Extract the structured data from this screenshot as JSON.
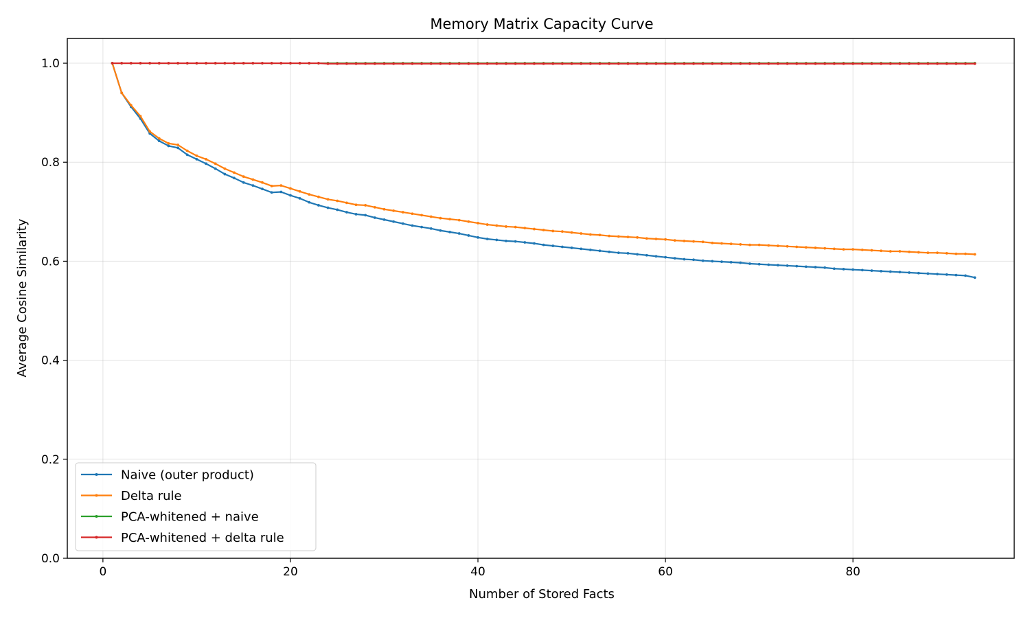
{
  "chart_data": {
    "type": "line",
    "title": "Memory Matrix Capacity Curve",
    "xlabel": "Number of Stored Facts",
    "ylabel": "Average Cosine Similarity",
    "xlim": [
      -3.8,
      97.2
    ],
    "ylim": [
      0,
      1.05
    ],
    "xticks": [
      0,
      20,
      40,
      60,
      80
    ],
    "yticks": [
      0.0,
      0.2,
      0.4,
      0.6,
      0.8,
      1.0
    ],
    "xtick_labels": [
      "0",
      "20",
      "40",
      "60",
      "80"
    ],
    "ytick_labels": [
      "0.0",
      "0.2",
      "0.4",
      "0.6",
      "0.8",
      "1.0"
    ],
    "grid": true,
    "legend_position": "lower-left",
    "series": [
      {
        "name": "Naive (outer product)",
        "color": "#1f77b4",
        "x_start": 1,
        "x_step": 1,
        "values": [
          1.0,
          0.94,
          0.912,
          0.888,
          0.858,
          0.843,
          0.833,
          0.829,
          0.815,
          0.806,
          0.797,
          0.787,
          0.776,
          0.768,
          0.759,
          0.753,
          0.746,
          0.739,
          0.74,
          0.733,
          0.727,
          0.719,
          0.713,
          0.708,
          0.704,
          0.699,
          0.695,
          0.693,
          0.688,
          0.684,
          0.68,
          0.676,
          0.672,
          0.669,
          0.666,
          0.662,
          0.659,
          0.656,
          0.652,
          0.648,
          0.645,
          0.643,
          0.641,
          0.64,
          0.638,
          0.636,
          0.633,
          0.631,
          0.629,
          0.627,
          0.625,
          0.623,
          0.621,
          0.619,
          0.617,
          0.616,
          0.614,
          0.612,
          0.61,
          0.608,
          0.606,
          0.604,
          0.603,
          0.601,
          0.6,
          0.599,
          0.598,
          0.597,
          0.595,
          0.594,
          0.593,
          0.592,
          0.591,
          0.59,
          0.589,
          0.588,
          0.587,
          0.585,
          0.584,
          0.583,
          0.582,
          0.581,
          0.58,
          0.579,
          0.578,
          0.577,
          0.576,
          0.575,
          0.574,
          0.573,
          0.572,
          0.571,
          0.567
        ]
      },
      {
        "name": "Delta rule",
        "color": "#ff7f0e",
        "x_start": 1,
        "x_step": 1,
        "values": [
          1.0,
          0.94,
          0.915,
          0.893,
          0.862,
          0.848,
          0.838,
          0.835,
          0.823,
          0.813,
          0.806,
          0.797,
          0.787,
          0.779,
          0.771,
          0.765,
          0.759,
          0.752,
          0.753,
          0.747,
          0.741,
          0.735,
          0.73,
          0.725,
          0.722,
          0.718,
          0.714,
          0.713,
          0.709,
          0.705,
          0.702,
          0.699,
          0.696,
          0.693,
          0.69,
          0.687,
          0.685,
          0.683,
          0.68,
          0.677,
          0.674,
          0.672,
          0.67,
          0.669,
          0.667,
          0.665,
          0.663,
          0.661,
          0.66,
          0.658,
          0.656,
          0.654,
          0.653,
          0.651,
          0.65,
          0.649,
          0.648,
          0.646,
          0.645,
          0.644,
          0.642,
          0.641,
          0.64,
          0.639,
          0.637,
          0.636,
          0.635,
          0.634,
          0.633,
          0.633,
          0.632,
          0.631,
          0.63,
          0.629,
          0.628,
          0.627,
          0.626,
          0.625,
          0.624,
          0.624,
          0.623,
          0.622,
          0.621,
          0.62,
          0.62,
          0.619,
          0.618,
          0.617,
          0.617,
          0.616,
          0.615,
          0.615,
          0.614
        ]
      },
      {
        "name": "PCA-whitened + naive",
        "color": "#2ca02c",
        "x_start": 1,
        "x_step": 1,
        "values": [
          1.0,
          1.0,
          1.0,
          1.0,
          1.0,
          1.0,
          1.0,
          1.0,
          1.0,
          1.0,
          1.0,
          1.0,
          1.0,
          1.0,
          1.0,
          1.0,
          1.0,
          1.0,
          1.0,
          1.0,
          1.0,
          1.0,
          1.0,
          1.0,
          1.0,
          1.0,
          1.0,
          1.0,
          1.0,
          1.0,
          1.0,
          1.0,
          1.0,
          1.0,
          1.0,
          1.0,
          1.0,
          1.0,
          1.0,
          1.0,
          1.0,
          1.0,
          1.0,
          1.0,
          1.0,
          1.0,
          1.0,
          1.0,
          1.0,
          1.0,
          1.0,
          1.0,
          1.0,
          1.0,
          1.0,
          1.0,
          1.0,
          1.0,
          1.0,
          1.0,
          1.0,
          1.0,
          1.0,
          1.0,
          1.0,
          1.0,
          1.0,
          1.0,
          1.0,
          1.0,
          1.0,
          1.0,
          1.0,
          1.0,
          1.0,
          1.0,
          1.0,
          1.0,
          1.0,
          1.0,
          1.0,
          1.0,
          1.0,
          1.0,
          1.0,
          1.0,
          1.0,
          1.0,
          1.0,
          1.0,
          1.0,
          1.0,
          1.0
        ]
      },
      {
        "name": "PCA-whitened + delta rule",
        "color": "#d62728",
        "x_start": 1,
        "x_step": 1,
        "values": [
          1.0,
          1.0,
          1.0,
          1.0,
          1.0,
          1.0,
          1.0,
          1.0,
          1.0,
          1.0,
          1.0,
          1.0,
          1.0,
          1.0,
          1.0,
          1.0,
          1.0,
          1.0,
          1.0,
          1.0,
          1.0,
          1.0,
          1.0,
          0.999,
          0.999,
          0.999,
          0.999,
          0.999,
          0.999,
          0.999,
          0.999,
          0.999,
          0.999,
          0.999,
          0.999,
          0.999,
          0.999,
          0.999,
          0.999,
          0.999,
          0.999,
          0.999,
          0.999,
          0.999,
          0.999,
          0.999,
          0.999,
          0.999,
          0.999,
          0.999,
          0.999,
          0.999,
          0.999,
          0.999,
          0.999,
          0.999,
          0.999,
          0.999,
          0.999,
          0.999,
          0.999,
          0.999,
          0.999,
          0.999,
          0.999,
          0.999,
          0.999,
          0.999,
          0.999,
          0.999,
          0.999,
          0.999,
          0.999,
          0.999,
          0.999,
          0.999,
          0.999,
          0.999,
          0.999,
          0.999,
          0.999,
          0.999,
          0.999,
          0.999,
          0.999,
          0.999,
          0.999,
          0.999,
          0.999,
          0.999,
          0.999,
          0.999,
          0.999
        ]
      }
    ]
  }
}
